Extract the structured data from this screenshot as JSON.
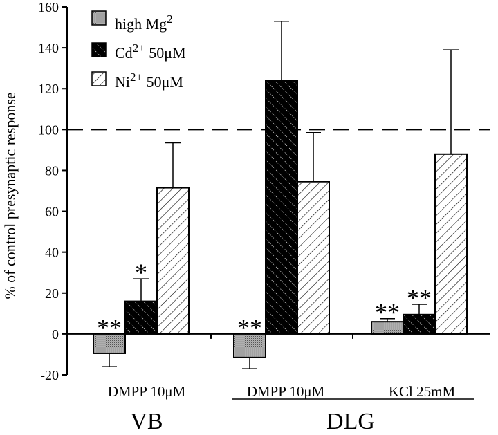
{
  "chart_data": {
    "type": "bar",
    "ylabel": "% of control presynaptic response",
    "ylim": [
      -20,
      160
    ],
    "ytick_step": 20,
    "reference_line": 100,
    "grid": false,
    "legend_placement": "top-left",
    "series": [
      {
        "name": "high Mg2+",
        "base": "high Mg",
        "sup": "2+",
        "suffix": "",
        "pattern": "dots",
        "key": "mg"
      },
      {
        "name": "Cd2+ 50μM",
        "base": "Cd",
        "sup": "2+",
        "suffix": " 50μM",
        "pattern": "black-diag",
        "key": "cd"
      },
      {
        "name": "Ni2+ 50μM",
        "base": "Ni",
        "sup": "2+",
        "suffix": " 50μM",
        "pattern": "white-diag",
        "key": "ni"
      }
    ],
    "groups": [
      {
        "label": "DMPP 10μM",
        "bars": [
          {
            "series": "mg",
            "value": -9.5,
            "err": 6.5,
            "sig": "**"
          },
          {
            "series": "cd",
            "value": 16,
            "err": 11,
            "sig": "*"
          },
          {
            "series": "ni",
            "value": 71.5,
            "err": 22,
            "sig": ""
          }
        ]
      },
      {
        "label": "DMPP 10μM",
        "bars": [
          {
            "series": "mg",
            "value": -11.5,
            "err": 5.5,
            "sig": "**"
          },
          {
            "series": "cd",
            "value": 124,
            "err": 29,
            "sig": ""
          },
          {
            "series": "ni",
            "value": 74.5,
            "err": 24,
            "sig": ""
          }
        ]
      },
      {
        "label": "KCl 25mM",
        "bars": [
          {
            "series": "mg",
            "value": 6,
            "err": 1.5,
            "sig": "**"
          },
          {
            "series": "cd",
            "value": 9.5,
            "err": 5,
            "sig": "**"
          },
          {
            "series": "ni",
            "value": 88,
            "err": 51,
            "sig": ""
          }
        ]
      }
    ],
    "region_labels": [
      "VB",
      "DLG"
    ]
  }
}
